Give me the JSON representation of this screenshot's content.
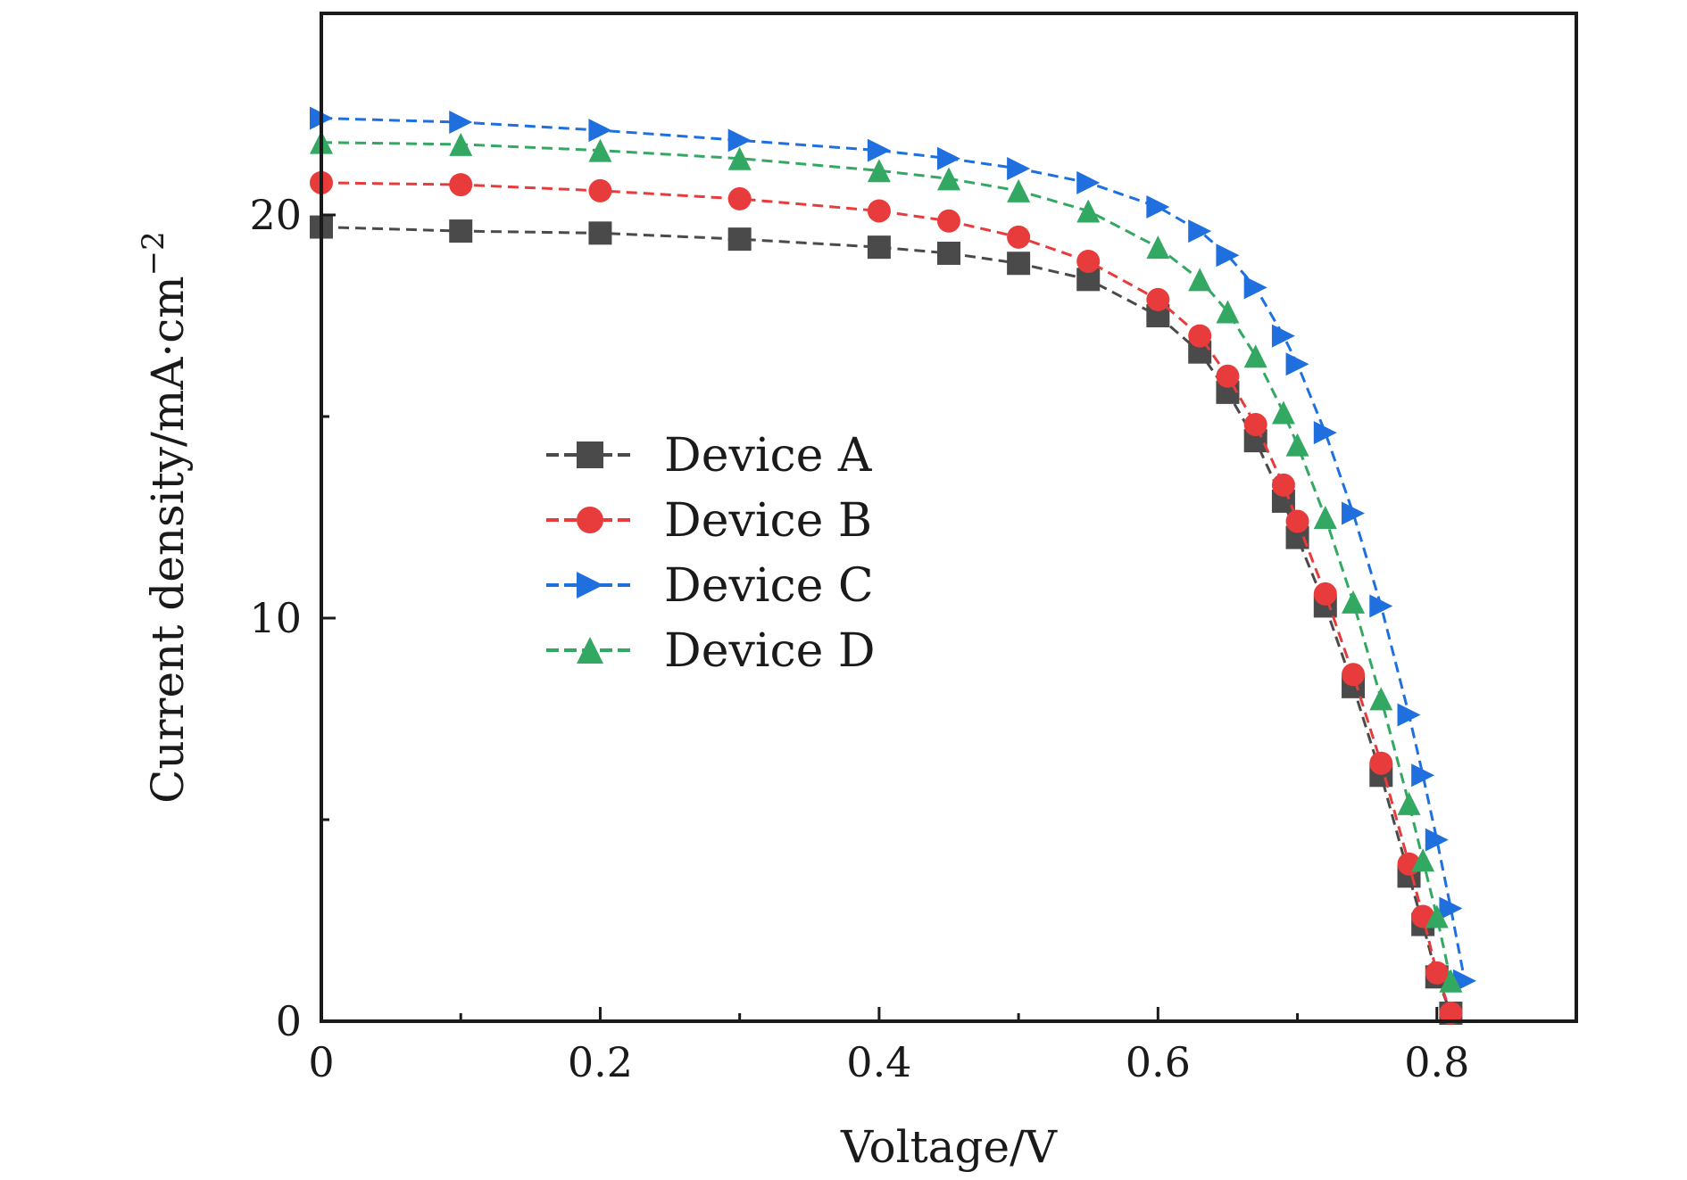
{
  "chart_data": {
    "type": "line",
    "title": "",
    "xlabel": "Voltage/V",
    "ylabel": "Current density/mA·cm",
    "ylabel_superscript": "−2",
    "xlim": [
      0,
      0.9
    ],
    "ylim": [
      0,
      25
    ],
    "x_ticks": [
      {
        "value": 0,
        "label": "0"
      },
      {
        "value": 0.2,
        "label": "0.2"
      },
      {
        "value": 0.4,
        "label": "0.4"
      },
      {
        "value": 0.6,
        "label": "0.6"
      },
      {
        "value": 0.8,
        "label": "0.8"
      }
    ],
    "x_minor_ticks": [
      0.1,
      0.3,
      0.5,
      0.7
    ],
    "y_ticks": [
      {
        "value": 0,
        "label": "0"
      },
      {
        "value": 10,
        "label": "10"
      },
      {
        "value": 20,
        "label": "20"
      }
    ],
    "y_minor_ticks": [
      5,
      15
    ],
    "grid": false,
    "legend_position": "center-left",
    "series": [
      {
        "name": "Device A",
        "color": "#4a4a4a",
        "marker": "square",
        "x": [
          0.0,
          0.1,
          0.2,
          0.3,
          0.4,
          0.45,
          0.5,
          0.55,
          0.6,
          0.63,
          0.65,
          0.67,
          0.69,
          0.7,
          0.72,
          0.74,
          0.76,
          0.78,
          0.79,
          0.8,
          0.81
        ],
        "y": [
          19.7,
          19.6,
          19.55,
          19.4,
          19.2,
          19.05,
          18.8,
          18.4,
          17.5,
          16.6,
          15.6,
          14.4,
          12.9,
          12.0,
          10.3,
          8.3,
          6.1,
          3.6,
          2.4,
          1.1,
          0.2
        ]
      },
      {
        "name": "Device B",
        "color": "#e83b3b",
        "marker": "circle",
        "x": [
          0.0,
          0.1,
          0.2,
          0.3,
          0.4,
          0.45,
          0.5,
          0.55,
          0.6,
          0.63,
          0.65,
          0.67,
          0.69,
          0.7,
          0.72,
          0.74,
          0.76,
          0.78,
          0.79,
          0.8,
          0.81
        ],
        "y": [
          20.8,
          20.75,
          20.6,
          20.4,
          20.1,
          19.85,
          19.45,
          18.85,
          17.9,
          17.0,
          16.0,
          14.8,
          13.3,
          12.4,
          10.6,
          8.6,
          6.4,
          3.9,
          2.6,
          1.2,
          0.2
        ]
      },
      {
        "name": "Device C",
        "color": "#1f6fdf",
        "marker": "triangle-right",
        "x": [
          0.0,
          0.1,
          0.2,
          0.3,
          0.4,
          0.45,
          0.5,
          0.55,
          0.6,
          0.63,
          0.65,
          0.67,
          0.69,
          0.7,
          0.72,
          0.74,
          0.76,
          0.78,
          0.79,
          0.8,
          0.81,
          0.82
        ],
        "y": [
          22.4,
          22.3,
          22.1,
          21.85,
          21.6,
          21.4,
          21.15,
          20.8,
          20.2,
          19.6,
          19.0,
          18.2,
          17.0,
          16.3,
          14.6,
          12.6,
          10.3,
          7.6,
          6.1,
          4.5,
          2.8,
          1.0
        ]
      },
      {
        "name": "Device D",
        "color": "#33a862",
        "marker": "triangle-up",
        "x": [
          0.0,
          0.1,
          0.2,
          0.3,
          0.4,
          0.45,
          0.5,
          0.55,
          0.6,
          0.63,
          0.65,
          0.67,
          0.69,
          0.7,
          0.72,
          0.74,
          0.76,
          0.78,
          0.79,
          0.8,
          0.81
        ],
        "y": [
          21.8,
          21.75,
          21.6,
          21.4,
          21.1,
          20.9,
          20.6,
          20.1,
          19.2,
          18.4,
          17.6,
          16.5,
          15.1,
          14.3,
          12.5,
          10.4,
          8.0,
          5.4,
          4.0,
          2.6,
          1.0
        ]
      }
    ]
  }
}
